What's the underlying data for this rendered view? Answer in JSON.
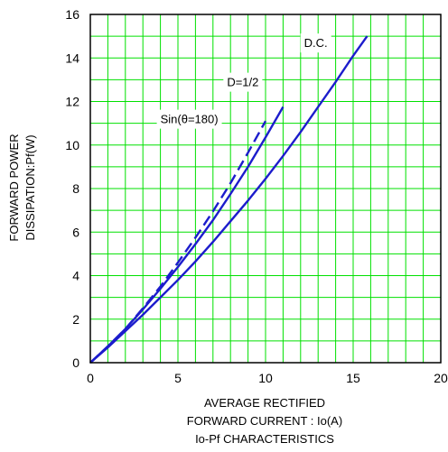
{
  "chart_data": {
    "type": "line",
    "title": "Io-Pf CHARACTERISTICS",
    "xlabel_lines": [
      "AVERAGE RECTIFIED",
      "FORWARD CURRENT : Io(A)"
    ],
    "ylabel_lines": [
      "FORWARD POWER",
      "DISSIPATION:Pf(W)"
    ],
    "xlim": [
      0,
      20
    ],
    "ylim": [
      0,
      16
    ],
    "x_ticks": [
      0,
      5,
      10,
      15,
      20
    ],
    "y_ticks": [
      0,
      2,
      4,
      6,
      8,
      10,
      12,
      14,
      16
    ],
    "grid": true,
    "grid_minor_step_x": 1,
    "grid_minor_step_y": 1,
    "colors": {
      "grid": "#00e000",
      "series": "#1c1ccc",
      "frame": "#000000"
    },
    "series": [
      {
        "name": "D.C.",
        "style": "solid",
        "x": [
          0,
          1,
          2,
          3,
          4,
          5,
          6,
          7,
          8,
          9,
          10,
          11,
          12,
          13,
          14,
          15,
          15.8
        ],
        "y": [
          0,
          0.7,
          1.45,
          2.2,
          3.0,
          3.8,
          4.65,
          5.55,
          6.5,
          7.45,
          8.45,
          9.5,
          10.6,
          11.75,
          12.9,
          14.1,
          15.0
        ]
      },
      {
        "name": "D=1/2",
        "style": "solid",
        "x": [
          0,
          1,
          2,
          3,
          4,
          5,
          6,
          7,
          8,
          9,
          10,
          11
        ],
        "y": [
          0,
          0.75,
          1.55,
          2.45,
          3.4,
          4.4,
          5.45,
          6.55,
          7.75,
          9.0,
          10.35,
          11.75
        ]
      },
      {
        "name": "Sin(θ=180)",
        "style": "dashed",
        "x": [
          0,
          1,
          2,
          3,
          4,
          5,
          6,
          7,
          8,
          9,
          10
        ],
        "y": [
          0,
          0.75,
          1.55,
          2.5,
          3.5,
          4.6,
          5.75,
          6.95,
          8.25,
          9.65,
          11.1
        ]
      }
    ],
    "annotations": [
      {
        "text": "D.C.",
        "x": 12.2,
        "y": 14.5
      },
      {
        "text": "D=1/2",
        "x": 7.8,
        "y": 12.7
      },
      {
        "text": "Sin(θ=180)",
        "x": 4.0,
        "y": 11.0
      }
    ]
  }
}
